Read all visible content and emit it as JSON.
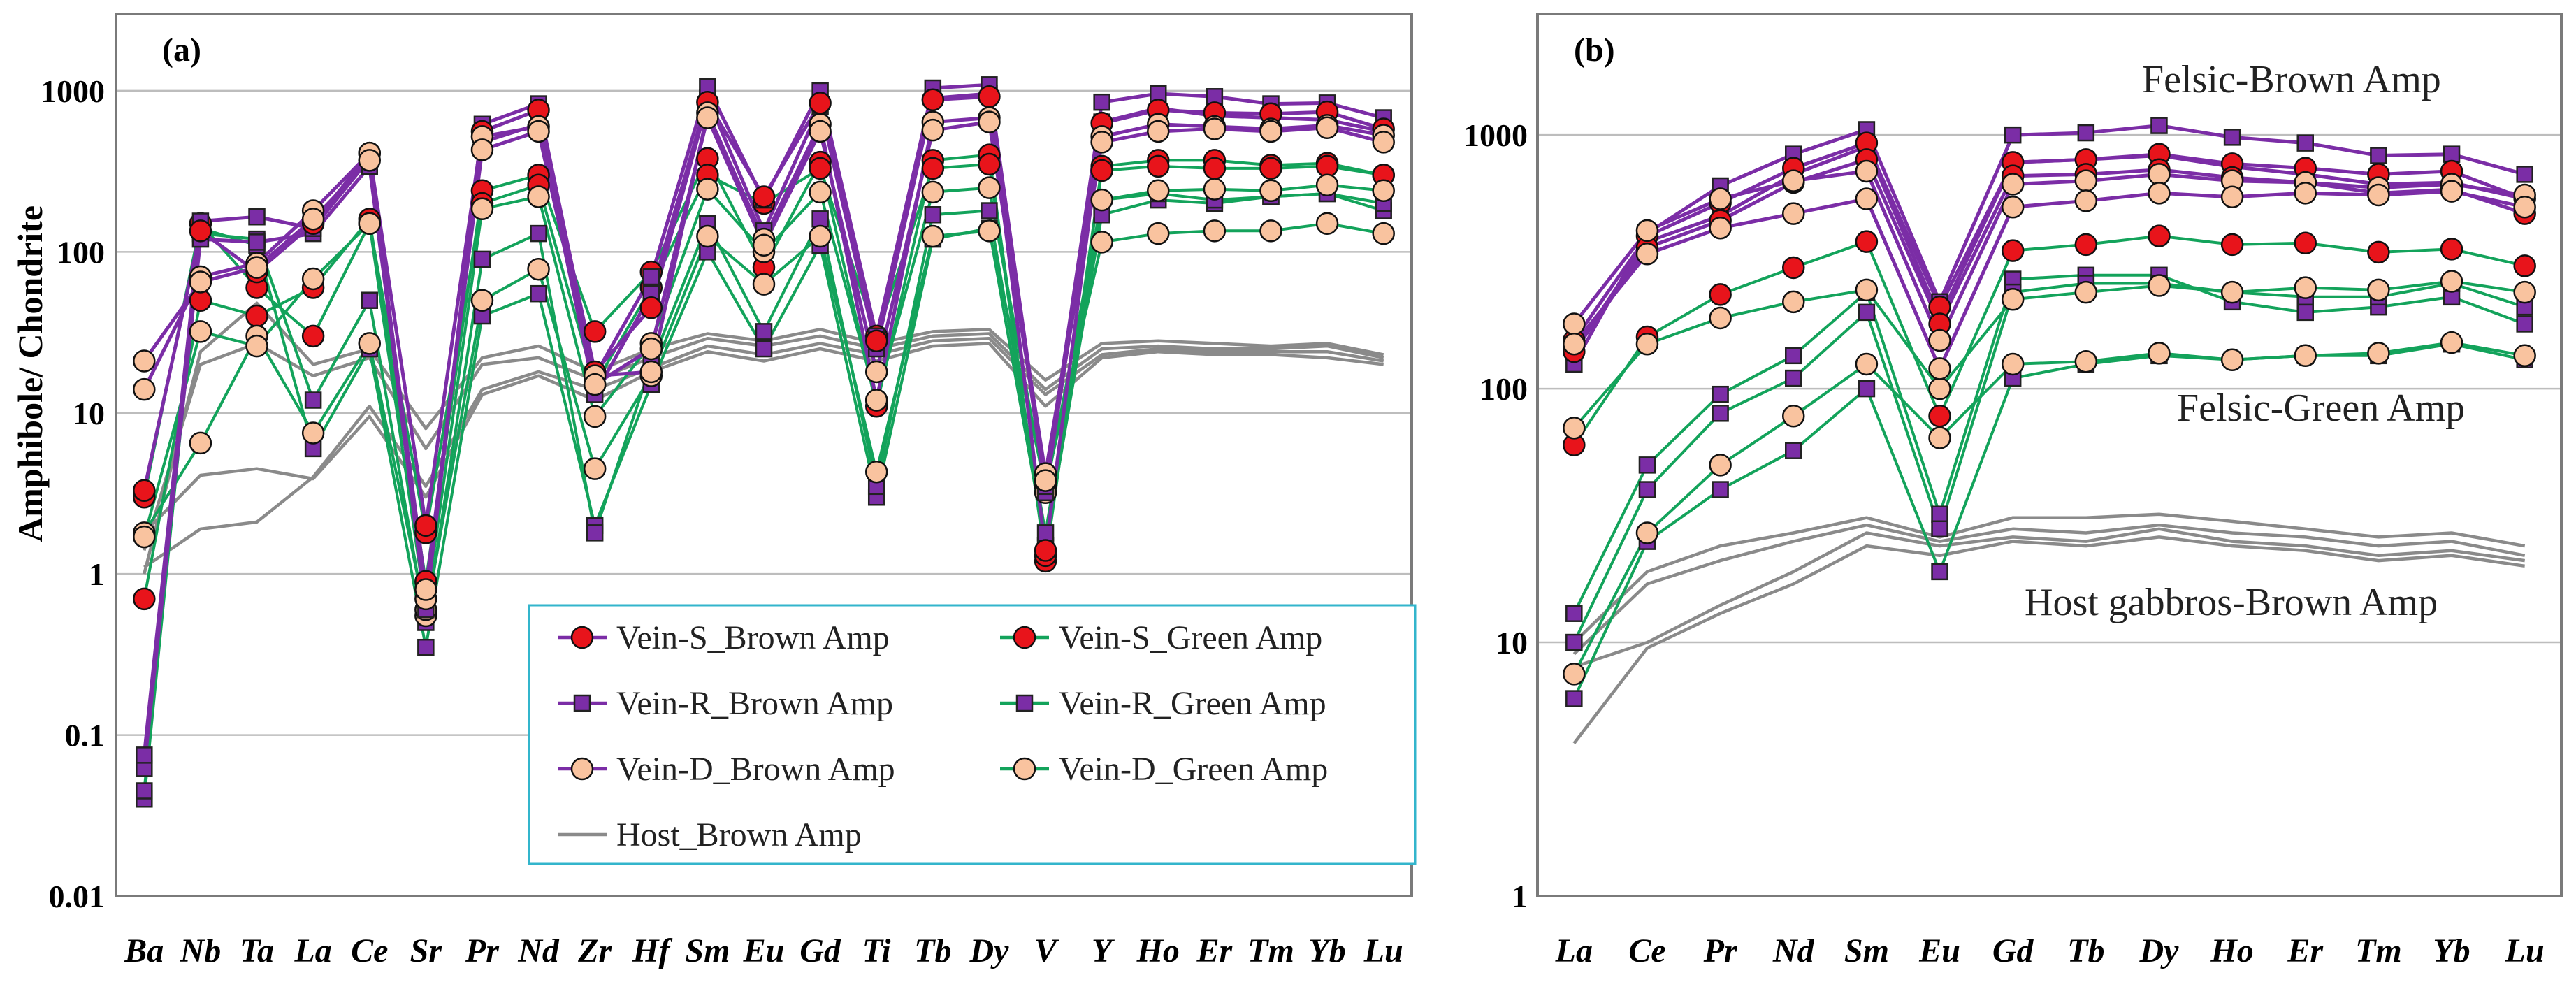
{
  "colors": {
    "brown_line": "#7B2DA6",
    "green_line": "#13A35B",
    "host_line": "#8A8A8A",
    "red_marker": "#E8141B",
    "orange_marker": "#F9C39F",
    "purple_marker": "#7B2DA6",
    "legend_border": "#33B5CC",
    "grid": "#BDBDBD"
  },
  "legend": {
    "items": [
      {
        "label": "Vein-S_Brown Amp",
        "line": "brown",
        "marker": "circle-red"
      },
      {
        "label": "Vein-S_Green Amp",
        "line": "green",
        "marker": "circle-red"
      },
      {
        "label": "Vein-R_Brown Amp",
        "line": "brown",
        "marker": "square-purple"
      },
      {
        "label": "Vein-R_Green Amp",
        "line": "green",
        "marker": "square-purple"
      },
      {
        "label": "Vein-D_Brown Amp",
        "line": "brown",
        "marker": "circle-orange"
      },
      {
        "label": "Vein-D_Green Amp",
        "line": "green",
        "marker": "circle-orange"
      },
      {
        "label": "Host_Brown Amp",
        "line": "host",
        "marker": "none"
      }
    ]
  },
  "chart_data": [
    {
      "panel": "(a)",
      "type": "line",
      "yscale": "log",
      "ylabel": "Amphibole/ Chondrite",
      "ylim": [
        0.01,
        3000
      ],
      "yticks": [
        "0.01",
        "0.1",
        "1",
        "10",
        "100",
        "1000"
      ],
      "categories": [
        "Ba",
        "Nb",
        "Ta",
        "La",
        "Ce",
        "Sr",
        "Pr",
        "Nd",
        "Zr",
        "Hf",
        "Sm",
        "Eu",
        "Gd",
        "Ti",
        "Tb",
        "Dy",
        "V",
        "Y",
        "Ho",
        "Er",
        "Tm",
        "Yb",
        "Lu"
      ],
      "series": [
        {
          "name": "Host_Brown Amp",
          "kind": "host",
          "values": [
            1.8,
            4.1,
            4.5,
            3.9,
            9.5,
            3,
            13,
            17,
            12,
            18,
            24,
            21,
            25,
            21,
            26,
            27,
            11,
            22,
            24,
            23,
            23,
            22,
            20
          ]
        },
        {
          "name": "Host_Brown Amp",
          "kind": "host",
          "values": [
            1.1,
            1.9,
            2.1,
            4,
            11,
            3.5,
            14,
            18,
            14,
            19,
            26,
            23,
            27,
            23,
            28,
            29,
            13,
            23,
            25,
            24,
            24,
            24,
            21
          ]
        },
        {
          "name": "Host_Brown Amp",
          "kind": "host",
          "values": [
            1.4,
            20,
            27,
            17,
            22,
            6,
            20,
            22,
            16,
            22,
            29,
            26,
            30,
            25,
            30,
            31,
            14,
            25,
            26,
            25,
            25,
            26,
            22
          ]
        },
        {
          "name": "Host_Brown Amp",
          "kind": "host",
          "values": [
            1.0,
            24,
            48,
            20,
            25,
            8,
            22,
            26,
            18,
            25,
            31,
            28,
            33,
            27,
            32,
            33,
            16,
            27,
            28,
            27,
            26,
            27,
            23
          ]
        },
        {
          "name": "Vein-R_Brown Amp",
          "kind": "R_brown",
          "values": [
            0.062,
            120,
            115,
            130,
            340,
            0.75,
            480,
            620,
            13,
            55,
            900,
            135,
            800,
            25,
            900,
            960,
            3.2,
            640,
            780,
            700,
            680,
            660,
            560
          ]
        },
        {
          "name": "Vein-R_Brown Amp",
          "kind": "R_brown",
          "values": [
            0.075,
            155,
            165,
            140,
            380,
            0.6,
            620,
            830,
            17,
            70,
            1060,
            210,
            1000,
            30,
            1040,
            1090,
            3.5,
            850,
            960,
            920,
            830,
            840,
            680
          ]
        },
        {
          "name": "Vein-R_Green Amp",
          "kind": "R_green",
          "values": [
            0.04,
            140,
            110,
            6,
            25,
            0.35,
            40,
            55,
            2,
            15,
            100,
            25,
            110,
            3,
            120,
            140,
            1.5,
            170,
            210,
            200,
            220,
            230,
            180
          ]
        },
        {
          "name": "Vein-R_Green Amp",
          "kind": "R_green",
          "values": [
            0.045,
            130,
            120,
            12,
            50,
            0.5,
            90,
            130,
            1.8,
            20,
            150,
            32,
            160,
            3.5,
            170,
            180,
            1.8,
            210,
            230,
            210,
            220,
            230,
            200
          ]
        },
        {
          "name": "Vein-S_Brown Amp",
          "kind": "S_brown",
          "values": [
            3.3,
            135,
            75,
            150,
            410,
            2.0,
            560,
            760,
            18,
            45,
            850,
            220,
            840,
            28,
            880,
            920,
            1.4,
            630,
            760,
            730,
            720,
            740,
            580
          ]
        },
        {
          "name": "Vein-S_Green Amp",
          "kind": "S_green",
          "values": [
            0.7,
            50,
            40,
            60,
            160,
            0.9,
            240,
            300,
            32,
            75,
            380,
            80,
            360,
            11,
            370,
            400,
            1.2,
            340,
            370,
            370,
            345,
            355,
            300
          ]
        },
        {
          "name": "Vein-S_Green Amp",
          "kind": "S_green",
          "values": [
            3.0,
            150,
            60,
            30,
            150,
            1.8,
            200,
            260,
            15,
            60,
            300,
            200,
            330,
            30,
            330,
            350,
            1.3,
            320,
            340,
            330,
            330,
            340,
            300
          ]
        },
        {
          "name": "Vein-D_Brown Amp",
          "kind": "D_brown",
          "values": [
            14,
            70,
            85,
            180,
            410,
            0.7,
            520,
            600,
            17,
            18,
            730,
            120,
            620,
            12,
            640,
            680,
            4.2,
            520,
            620,
            600,
            580,
            610,
            530
          ]
        },
        {
          "name": "Vein-D_Brown Amp",
          "kind": "D_brown",
          "values": [
            21,
            65,
            80,
            160,
            370,
            0.8,
            430,
            560,
            15,
            25,
            680,
            110,
            560,
            18,
            570,
            640,
            3.8,
            480,
            560,
            580,
            560,
            590,
            480
          ]
        },
        {
          "name": "Vein-D_Green Amp",
          "kind": "D_green",
          "values": [
            1.8,
            6.5,
            30,
            7.5,
            27,
            0.55,
            50,
            78,
            4.5,
            17,
            125,
            63,
            125,
            4.3,
            125,
            135,
            3.5,
            115,
            130,
            135,
            135,
            150,
            130
          ]
        },
        {
          "name": "Vein-D_Green Amp",
          "kind": "D_green",
          "values": [
            1.7,
            32,
            26,
            68,
            150,
            0.6,
            185,
            220,
            9.5,
            27,
            245,
            100,
            235,
            12,
            235,
            250,
            3.2,
            210,
            240,
            245,
            240,
            260,
            240
          ]
        }
      ]
    },
    {
      "panel": "(b)",
      "type": "line",
      "yscale": "log",
      "ylim": [
        1,
        3000
      ],
      "yticks": [
        "1",
        "10",
        "100",
        "1000"
      ],
      "categories": [
        "La",
        "Ce",
        "Pr",
        "Nd",
        "Sm",
        "Eu",
        "Gd",
        "Tb",
        "Dy",
        "Ho",
        "Er",
        "Tm",
        "Yb",
        "Lu"
      ],
      "annotations": [
        "Felsic-Brown Amp",
        "Felsic-Green Amp",
        "Host gabbros-Brown Amp"
      ],
      "series": [
        {
          "name": "Host_Brown Amp",
          "kind": "host",
          "values": [
            4,
            9.5,
            13,
            17,
            24,
            22,
            25,
            24,
            26,
            24,
            23,
            21,
            22,
            20
          ]
        },
        {
          "name": "Host_Brown Amp",
          "kind": "host",
          "values": [
            8,
            10,
            14,
            19,
            27,
            24,
            26,
            25,
            28,
            25,
            24,
            22,
            23,
            21
          ]
        },
        {
          "name": "Host_Brown Amp",
          "kind": "host",
          "values": [
            9,
            17,
            21,
            25,
            29,
            25,
            28,
            27,
            29,
            27,
            26,
            24,
            25,
            22
          ]
        },
        {
          "name": "Host_Brown Amp",
          "kind": "host",
          "values": [
            10,
            19,
            24,
            27,
            31,
            26,
            31,
            31,
            32,
            30,
            28,
            26,
            27,
            24
          ]
        },
        {
          "name": "Vein-R_Brown Amp",
          "kind": "R_brown",
          "values": [
            125,
            410,
            630,
            840,
            1050,
            220,
            1000,
            1020,
            1090,
            980,
            930,
            830,
            840,
            700
          ]
        },
        {
          "name": "Vein-R_Brown Amp",
          "kind": "R_brown",
          "values": [
            140,
            380,
            480,
            700,
            900,
            190,
            780,
            800,
            830,
            750,
            700,
            640,
            650,
            560
          ]
        },
        {
          "name": "Vein-R_Green Amp",
          "kind": "R_green",
          "values": [
            6,
            25,
            40,
            57,
            100,
            19,
            110,
            125,
            135,
            130,
            135,
            135,
            150,
            130
          ]
        },
        {
          "name": "Vein-R_Green Amp",
          "kind": "R_green",
          "values": [
            13,
            50,
            95,
            135,
            240,
            32,
            270,
            280,
            280,
            220,
            200,
            210,
            230,
            180
          ]
        },
        {
          "name": "Vein-R_Green Amp",
          "kind": "R_green",
          "values": [
            10,
            40,
            80,
            110,
            200,
            28,
            240,
            260,
            260,
            240,
            230,
            230,
            260,
            210
          ]
        },
        {
          "name": "Vein-S_Brown Amp",
          "kind": "S_brown",
          "values": [
            155,
            400,
            540,
            740,
            930,
            210,
            780,
            800,
            840,
            770,
            740,
            700,
            720,
            560
          ]
        },
        {
          "name": "Vein-S_Brown Amp",
          "kind": "S_brown",
          "values": [
            140,
            360,
            460,
            650,
            800,
            180,
            690,
            700,
            730,
            680,
            650,
            590,
            610,
            490
          ]
        },
        {
          "name": "Vein-S_Green Amp",
          "kind": "S_green",
          "values": [
            60,
            160,
            235,
            300,
            380,
            78,
            350,
            370,
            400,
            370,
            375,
            345,
            355,
            305
          ]
        },
        {
          "name": "Vein-D_Brown Amp",
          "kind": "D_brown",
          "values": [
            180,
            420,
            560,
            660,
            720,
            155,
            640,
            660,
            700,
            660,
            650,
            620,
            640,
            580
          ]
        },
        {
          "name": "Vein-D_Brown Amp",
          "kind": "D_brown",
          "values": [
            150,
            340,
            430,
            490,
            560,
            120,
            520,
            550,
            590,
            570,
            590,
            580,
            600,
            520
          ]
        },
        {
          "name": "Vein-D_Green Amp",
          "kind": "D_green",
          "values": [
            7.5,
            27,
            50,
            78,
            125,
            64,
            125,
            128,
            138,
            130,
            135,
            138,
            152,
            135
          ]
        },
        {
          "name": "Vein-D_Green Amp",
          "kind": "D_green",
          "values": [
            70,
            150,
            190,
            220,
            245,
            100,
            225,
            240,
            255,
            240,
            250,
            245,
            265,
            240
          ]
        }
      ]
    }
  ]
}
